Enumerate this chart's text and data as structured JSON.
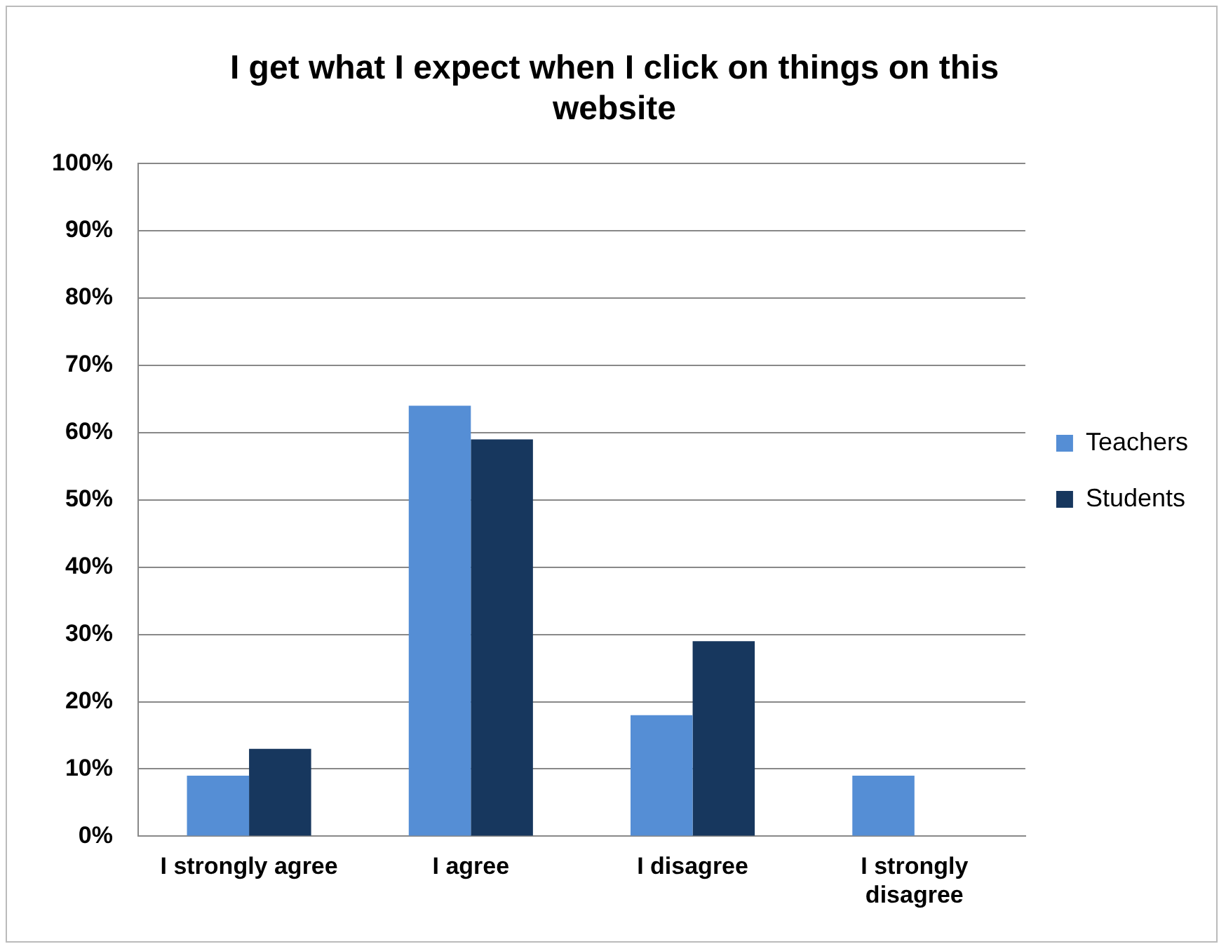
{
  "chart_data": {
    "type": "bar",
    "title": "I get what I expect when I click on things on this website",
    "categories": [
      "I strongly agree",
      "I agree",
      "I disagree",
      "I strongly disagree"
    ],
    "series": [
      {
        "name": "Teachers",
        "color": "#558ed5",
        "values": [
          9,
          64,
          18,
          9
        ]
      },
      {
        "name": "Students",
        "color": "#17375e",
        "values": [
          13,
          59,
          29,
          0
        ]
      }
    ],
    "ylim": [
      0,
      100
    ],
    "yticks": [
      {
        "value": 0,
        "label": "0%"
      },
      {
        "value": 10,
        "label": "10%"
      },
      {
        "value": 20,
        "label": "20%"
      },
      {
        "value": 30,
        "label": "30%"
      },
      {
        "value": 40,
        "label": "40%"
      },
      {
        "value": 50,
        "label": "50%"
      },
      {
        "value": 60,
        "label": "60%"
      },
      {
        "value": 70,
        "label": "70%"
      },
      {
        "value": 80,
        "label": "80%"
      },
      {
        "value": 90,
        "label": "90%"
      },
      {
        "value": 100,
        "label": "100%"
      }
    ],
    "grid": "y",
    "legend": "right"
  }
}
